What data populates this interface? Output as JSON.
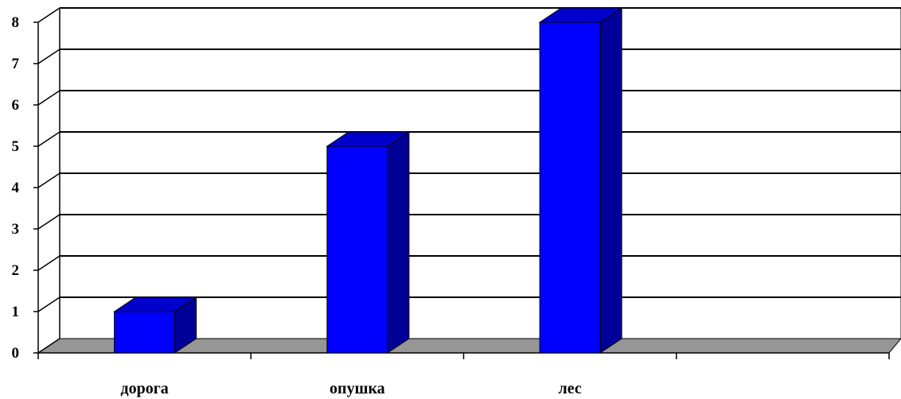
{
  "chart_data": {
    "type": "bar",
    "categories": [
      "дорога",
      "опушка",
      "лес",
      ""
    ],
    "values": [
      1,
      5,
      8,
      null
    ],
    "title": "",
    "xlabel": "",
    "ylabel": "",
    "ylim": [
      0,
      8
    ],
    "yticks": [
      "0",
      "1",
      "2",
      "3",
      "4",
      "5",
      "6",
      "7",
      "8"
    ],
    "grid": true,
    "legend": "none",
    "style": "3d-column",
    "colors": {
      "bar_front": "#0000FF",
      "bar_top": "#0000CC",
      "bar_side": "#000099",
      "floor": "#969696",
      "grid": "#000000"
    }
  }
}
